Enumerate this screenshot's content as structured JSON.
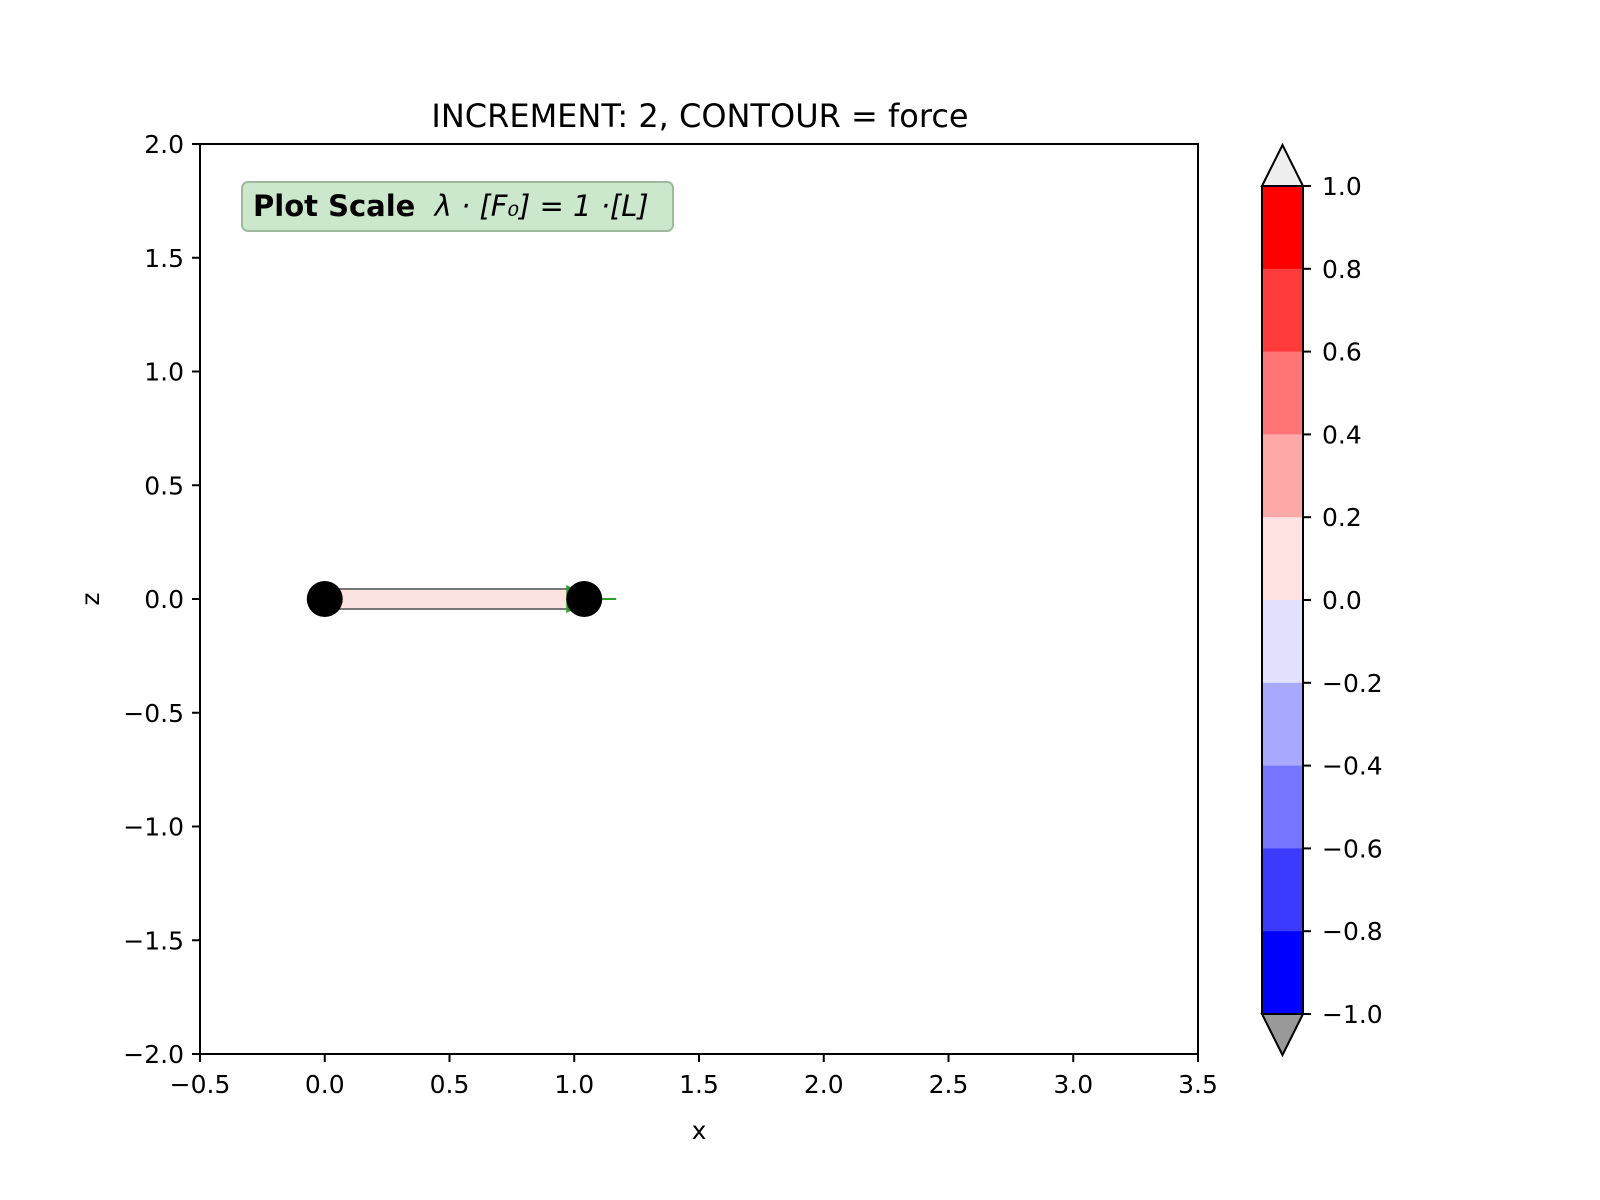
{
  "chart_data": {
    "type": "scatter",
    "title": "INCREMENT: 2, CONTOUR = force",
    "xlabel": "x",
    "ylabel": "z",
    "xlim": [
      -0.5,
      3.5
    ],
    "ylim": [
      -2.0,
      2.0
    ],
    "xticks": [
      -0.5,
      0.0,
      0.5,
      1.0,
      1.5,
      2.0,
      2.5,
      3.0,
      3.5
    ],
    "xtick_labels": [
      "−0.5",
      "0.0",
      "0.5",
      "1.0",
      "1.5",
      "2.0",
      "2.5",
      "3.0",
      "3.5"
    ],
    "yticks": [
      2.0,
      1.5,
      1.0,
      0.5,
      0.0,
      -0.5,
      -1.0,
      -1.5,
      -2.0
    ],
    "ytick_labels": [
      "2.0",
      "1.5",
      "1.0",
      "0.5",
      "0.0",
      "−0.5",
      "−1.0",
      "−1.5",
      "−2.0"
    ],
    "grid": false,
    "nodes": [
      {
        "x": 0.0,
        "z": 0.0
      },
      {
        "x": 1.04,
        "z": 0.0
      }
    ],
    "elements": [
      {
        "from": 0,
        "to": 1,
        "force": 0.05,
        "color": "#fde2e2"
      }
    ],
    "load_arrow": {
      "x": 1.0,
      "z": 0.0,
      "color": "#2ca02c"
    },
    "annotation": {
      "bold": "Plot Scale",
      "math": "λ · [F₀] =   1 ·[L]",
      "background": "#cce8cc"
    },
    "colorbar": {
      "min": -1.0,
      "max": 1.0,
      "ticks": [
        1.0,
        0.8,
        0.6,
        0.4,
        0.2,
        0.0,
        -0.2,
        -0.4,
        -0.6,
        -0.8,
        -1.0
      ],
      "tick_labels": [
        "1.0",
        "0.8",
        "0.6",
        "0.4",
        "0.2",
        "0.0",
        "−0.2",
        "−0.4",
        "−0.6",
        "−0.8",
        "−1.0"
      ],
      "bands_top_to_bottom": [
        "#ff0000",
        "#ff3b3b",
        "#ff7575",
        "#ffa8a8",
        "#ffe2e2",
        "#e2e2ff",
        "#a8a8ff",
        "#7575ff",
        "#3b3bff",
        "#0000ff"
      ],
      "extend_over_color": "#eeeeee",
      "extend_under_color": "#999999"
    }
  }
}
